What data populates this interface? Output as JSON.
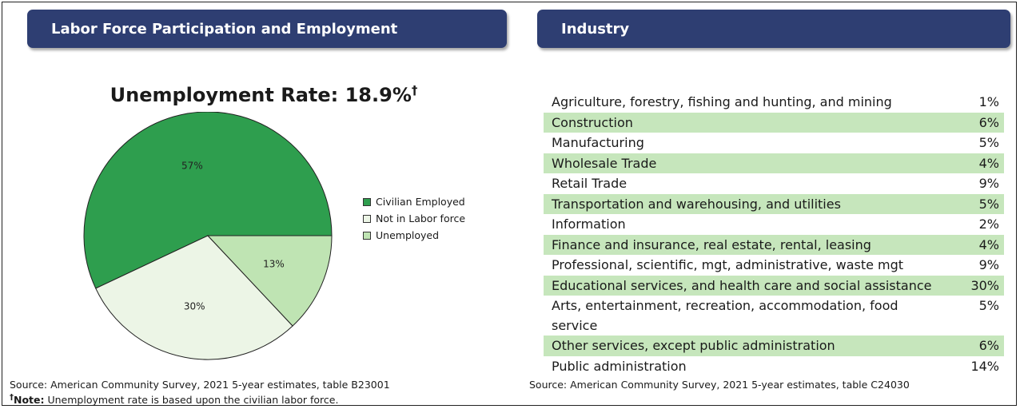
{
  "left_panel": {
    "header": "Labor Force Participation and Employment",
    "title": "Unemployment Rate: 18.9%",
    "title_mark": "†",
    "source": "Source: American Community Survey, 2021 5-year estimates, table B23001",
    "note_mark": "†",
    "note_label": "Note:",
    "note_text": " Unemployment rate is based upon the civilian labor force."
  },
  "chart_data": {
    "type": "pie",
    "title": "Unemployment Rate: 18.9%",
    "categories": [
      "Civilian Employed",
      "Not in Labor force",
      "Unemployed"
    ],
    "values": [
      57,
      30,
      13
    ],
    "labels": [
      "57%",
      "30%",
      "13%"
    ],
    "colors": [
      "#2e9e4e",
      "#ecf5e6",
      "#bfe4b3"
    ],
    "legend_position": "right"
  },
  "right_panel": {
    "header": "Industry",
    "rows": [
      {
        "name": "Agriculture, forestry, fishing and hunting, and mining",
        "pct": "1%"
      },
      {
        "name": "Construction",
        "pct": "6%"
      },
      {
        "name": "Manufacturing",
        "pct": "5%"
      },
      {
        "name": "Wholesale Trade",
        "pct": "4%"
      },
      {
        "name": "Retail Trade",
        "pct": "9%"
      },
      {
        "name": "Transportation and warehousing, and utilities",
        "pct": "5%"
      },
      {
        "name": "Information",
        "pct": "2%"
      },
      {
        "name": "Finance and insurance, real estate, rental, leasing",
        "pct": "4%"
      },
      {
        "name": "Professional, scientific, mgt, administrative, waste mgt",
        "pct": "9%"
      },
      {
        "name": "Educational services, and health care and social assistance",
        "pct": "30%"
      },
      {
        "name": "Arts, entertainment, recreation, accommodation, food service",
        "pct": "5%"
      },
      {
        "name": "Other services, except public administration",
        "pct": "6%"
      },
      {
        "name": "Public administration",
        "pct": "14%"
      }
    ],
    "source": "Source: American Community Survey, 2021 5-year estimates, table C24030",
    "shade_color": "#c6e6bc"
  },
  "header_color": "#2e3e72"
}
